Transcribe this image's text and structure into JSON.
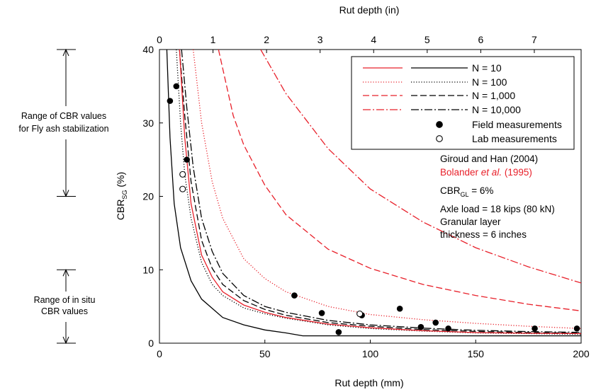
{
  "chart_data": {
    "type": "line",
    "xlabel": "Rut depth (mm)",
    "x2label": "Rut depth (in)",
    "ylabel": "CBR",
    "ylabel_sub": "SG",
    "ylabel_unit": " (%)",
    "xlim": [
      0,
      200
    ],
    "ylim": [
      0,
      40
    ],
    "x2lim_in": [
      0,
      7.874
    ],
    "xticks": [
      "0",
      "50",
      "100",
      "150",
      "200"
    ],
    "yticks": [
      "0",
      "10",
      "20",
      "30",
      "40"
    ],
    "x2ticks": [
      "0",
      "1",
      "2",
      "3",
      "4",
      "5",
      "6",
      "7"
    ],
    "grid": false,
    "legend_position": "top-right",
    "legend": [
      {
        "label": "N = 10",
        "style": "solid"
      },
      {
        "label": "N = 100",
        "style": "dotted"
      },
      {
        "label": "N = 1,000",
        "style": "dashed"
      },
      {
        "label": "N = 10,000",
        "style": "dashdot"
      },
      {
        "label": "Field measurements",
        "style": "filled"
      },
      {
        "label": "Lab measurements",
        "style": "open"
      }
    ],
    "colors": {
      "giroud": "#000000",
      "bolander": "#e8202a"
    },
    "notes": {
      "giroud": "Giroud and Han (2004)",
      "bolander_a": "Bolander ",
      "bolander_b": "et al.",
      "bolander_c": " (1995)",
      "cbr_main": "CBR",
      "cbr_sub": "GL",
      "cbr_rest": " = 6%",
      "axle": "Axle load = 18 kips (80 kN)",
      "layer1": "Granular layer",
      "layer2": "thickness = 6 inches"
    },
    "range_labels": {
      "fly_ash_1": "Range of CBR values",
      "fly_ash_2": "for Fly ash stabilization",
      "in_situ_1": "Range of in situ",
      "in_situ_2": "CBR values"
    },
    "range_values": {
      "fly_ash": [
        20,
        40
      ],
      "in_situ": [
        0,
        10
      ]
    },
    "series": [
      {
        "group": "giroud",
        "style": "solid",
        "label": "N = 10",
        "points": [
          [
            3.5,
            40
          ],
          [
            5,
            28
          ],
          [
            7,
            19
          ],
          [
            10,
            13
          ],
          [
            15,
            8.5
          ],
          [
            20,
            6
          ],
          [
            30,
            3.5
          ],
          [
            40,
            2.5
          ],
          [
            50,
            1.8
          ],
          [
            60,
            1.4
          ],
          [
            68,
            1.0
          ],
          [
            200,
            1.0
          ]
        ]
      },
      {
        "group": "giroud",
        "style": "dotted",
        "label": "N = 100",
        "points": [
          [
            8,
            40
          ],
          [
            10,
            30
          ],
          [
            12,
            23
          ],
          [
            15,
            17
          ],
          [
            20,
            11
          ],
          [
            25,
            8
          ],
          [
            30,
            6.5
          ],
          [
            40,
            4.8
          ],
          [
            50,
            4
          ],
          [
            60,
            3.4
          ],
          [
            80,
            2.5
          ],
          [
            100,
            2
          ],
          [
            125,
            1.65
          ],
          [
            150,
            1.4
          ],
          [
            175,
            1.3
          ],
          [
            200,
            1.2
          ]
        ]
      },
      {
        "group": "giroud",
        "style": "dashed",
        "label": "N = 1,000",
        "points": [
          [
            9.5,
            40
          ],
          [
            12,
            31
          ],
          [
            15,
            22
          ],
          [
            20,
            14
          ],
          [
            25,
            10.2
          ],
          [
            30,
            8
          ],
          [
            40,
            5.8
          ],
          [
            50,
            4.6
          ],
          [
            60,
            3.8
          ],
          [
            80,
            2.8
          ],
          [
            100,
            2.3
          ],
          [
            125,
            1.85
          ],
          [
            150,
            1.6
          ],
          [
            175,
            1.45
          ],
          [
            200,
            1.35
          ]
        ]
      },
      {
        "group": "giroud",
        "style": "dashdot",
        "label": "N = 10,000",
        "points": [
          [
            10.5,
            40
          ],
          [
            13,
            32
          ],
          [
            16,
            24
          ],
          [
            20,
            17
          ],
          [
            25,
            12.5
          ],
          [
            30,
            9.5
          ],
          [
            40,
            6.5
          ],
          [
            50,
            5
          ],
          [
            60,
            4.2
          ],
          [
            80,
            3.1
          ],
          [
            100,
            2.5
          ],
          [
            125,
            2.05
          ],
          [
            150,
            1.75
          ],
          [
            175,
            1.58
          ],
          [
            200,
            1.47
          ]
        ]
      },
      {
        "group": "bolander",
        "style": "solid",
        "label": "N = 10",
        "points": [
          [
            9.5,
            40
          ],
          [
            12,
            28
          ],
          [
            15,
            19
          ],
          [
            20,
            12
          ],
          [
            25,
            9
          ],
          [
            30,
            7
          ],
          [
            40,
            5.2
          ],
          [
            50,
            4.2
          ],
          [
            60,
            3.5
          ],
          [
            80,
            2.6
          ],
          [
            100,
            2.1
          ],
          [
            125,
            1.7
          ],
          [
            150,
            1.45
          ],
          [
            175,
            1.35
          ],
          [
            200,
            1.3
          ]
        ]
      },
      {
        "group": "bolander",
        "style": "dotted",
        "label": "N = 100",
        "points": [
          [
            16,
            40
          ],
          [
            20,
            30
          ],
          [
            25,
            22
          ],
          [
            30,
            17
          ],
          [
            40,
            11.5
          ],
          [
            50,
            8.8
          ],
          [
            60,
            7
          ],
          [
            80,
            5
          ],
          [
            100,
            3.9
          ],
          [
            125,
            3.2
          ],
          [
            150,
            2.7
          ],
          [
            175,
            2.3
          ],
          [
            200,
            2.0
          ]
        ]
      },
      {
        "group": "bolander",
        "style": "dashed",
        "label": "N = 1,000",
        "points": [
          [
            28,
            40
          ],
          [
            35,
            31
          ],
          [
            40,
            27
          ],
          [
            50,
            21.5
          ],
          [
            60,
            17.5
          ],
          [
            80,
            12.8
          ],
          [
            100,
            10.2
          ],
          [
            125,
            8
          ],
          [
            150,
            6.5
          ],
          [
            175,
            5.3
          ],
          [
            200,
            4.4
          ]
        ]
      },
      {
        "group": "bolander",
        "style": "dashdot",
        "label": "N = 10,000",
        "points": [
          [
            48,
            40
          ],
          [
            60,
            34
          ],
          [
            80,
            26.5
          ],
          [
            100,
            21
          ],
          [
            125,
            16.5
          ],
          [
            150,
            13
          ],
          [
            175,
            10.4
          ],
          [
            200,
            8.2
          ]
        ]
      }
    ],
    "field_measurements": {
      "x": [
        5,
        8,
        13,
        64,
        77,
        85,
        96,
        114,
        124,
        131,
        137,
        178,
        198
      ],
      "y": [
        33,
        35,
        25,
        6.5,
        4.1,
        1.5,
        3.8,
        4.7,
        2.2,
        2.8,
        2.0,
        2.0,
        2.0
      ]
    },
    "lab_measurements": {
      "x": [
        11,
        11,
        95
      ],
      "y": [
        23,
        21,
        4.0
      ]
    }
  }
}
